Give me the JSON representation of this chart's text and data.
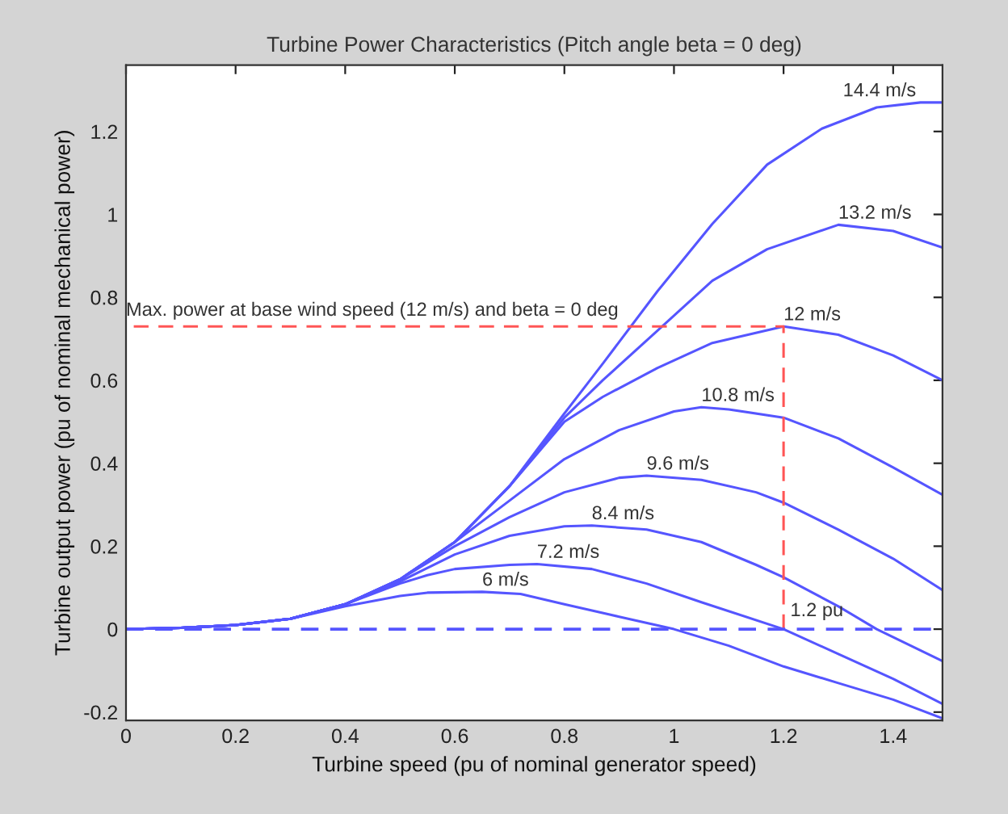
{
  "chart_data": {
    "type": "line",
    "title": "Turbine Power Characteristics (Pitch angle beta = 0 deg)",
    "xlabel": "Turbine speed (pu of nominal generator speed)",
    "ylabel": "Turbine output power (pu of nominal mechanical power)",
    "xlim": [
      0,
      1.49
    ],
    "ylim": [
      -0.22,
      1.36
    ],
    "xticks": [
      0,
      0.2,
      0.4,
      0.6,
      0.8,
      1,
      1.2,
      1.4
    ],
    "yticks": [
      -0.2,
      0,
      0.2,
      0.4,
      0.6,
      0.8,
      1,
      1.2
    ],
    "grid": false,
    "legend": false,
    "marker": "none",
    "line_style": "solid",
    "series": [
      {
        "name": "6 m/s",
        "color": "#5555ff",
        "x": [
          0,
          0.1,
          0.2,
          0.3,
          0.4,
          0.5,
          0.55,
          0.65,
          0.72,
          0.8,
          0.9,
          1.0,
          1.1,
          1.2,
          1.3,
          1.4,
          1.49
        ],
        "values": [
          0,
          0.003,
          0.01,
          0.025,
          0.055,
          0.08,
          0.088,
          0.09,
          0.085,
          0.06,
          0.03,
          0.0,
          -0.04,
          -0.09,
          -0.13,
          -0.17,
          -0.215
        ]
      },
      {
        "name": "7.2 m/s",
        "color": "#5555ff",
        "x": [
          0,
          0.1,
          0.2,
          0.3,
          0.4,
          0.5,
          0.55,
          0.6,
          0.7,
          0.75,
          0.85,
          0.95,
          1.05,
          1.2,
          1.3,
          1.4,
          1.49
        ],
        "values": [
          0,
          0.003,
          0.01,
          0.025,
          0.06,
          0.11,
          0.13,
          0.145,
          0.155,
          0.157,
          0.145,
          0.11,
          0.065,
          0.0,
          -0.06,
          -0.12,
          -0.18
        ]
      },
      {
        "name": "8.4 m/s",
        "color": "#5555ff",
        "x": [
          0,
          0.1,
          0.2,
          0.3,
          0.4,
          0.5,
          0.6,
          0.7,
          0.8,
          0.85,
          0.95,
          1.05,
          1.15,
          1.2,
          1.3,
          1.37,
          1.49
        ],
        "values": [
          0,
          0.003,
          0.01,
          0.025,
          0.06,
          0.115,
          0.18,
          0.225,
          0.248,
          0.25,
          0.24,
          0.21,
          0.155,
          0.125,
          0.055,
          0.0,
          -0.077
        ]
      },
      {
        "name": "9.6 m/s",
        "color": "#5555ff",
        "x": [
          0,
          0.1,
          0.2,
          0.3,
          0.4,
          0.5,
          0.6,
          0.7,
          0.8,
          0.9,
          0.95,
          1.05,
          1.15,
          1.2,
          1.3,
          1.4,
          1.49
        ],
        "values": [
          0,
          0.003,
          0.01,
          0.025,
          0.06,
          0.12,
          0.2,
          0.27,
          0.33,
          0.365,
          0.37,
          0.36,
          0.33,
          0.305,
          0.24,
          0.17,
          0.094
        ]
      },
      {
        "name": "10.8 m/s",
        "color": "#5555ff",
        "x": [
          0,
          0.1,
          0.2,
          0.3,
          0.4,
          0.5,
          0.6,
          0.7,
          0.8,
          0.9,
          1.0,
          1.05,
          1.1,
          1.2,
          1.3,
          1.4,
          1.49
        ],
        "values": [
          0,
          0.003,
          0.01,
          0.025,
          0.06,
          0.12,
          0.21,
          0.31,
          0.41,
          0.48,
          0.525,
          0.535,
          0.53,
          0.51,
          0.46,
          0.39,
          0.324
        ]
      },
      {
        "name": "12 m/s",
        "color": "#5555ff",
        "x": [
          0,
          0.1,
          0.2,
          0.3,
          0.4,
          0.5,
          0.6,
          0.7,
          0.8,
          0.87,
          0.97,
          1.07,
          1.2,
          1.3,
          1.4,
          1.49
        ],
        "values": [
          0,
          0.003,
          0.01,
          0.025,
          0.06,
          0.12,
          0.21,
          0.345,
          0.5,
          0.56,
          0.63,
          0.69,
          0.73,
          0.71,
          0.66,
          0.6
        ]
      },
      {
        "name": "13.2 m/s",
        "color": "#5555ff",
        "x": [
          0,
          0.1,
          0.2,
          0.3,
          0.4,
          0.5,
          0.6,
          0.7,
          0.8,
          0.87,
          0.97,
          1.07,
          1.17,
          1.3,
          1.4,
          1.49
        ],
        "values": [
          0,
          0.003,
          0.01,
          0.025,
          0.06,
          0.12,
          0.21,
          0.345,
          0.51,
          0.6,
          0.72,
          0.84,
          0.916,
          0.975,
          0.96,
          0.92
        ]
      },
      {
        "name": "14.4 m/s",
        "color": "#5555ff",
        "x": [
          0,
          0.1,
          0.2,
          0.3,
          0.4,
          0.5,
          0.6,
          0.7,
          0.8,
          0.87,
          0.97,
          1.07,
          1.17,
          1.27,
          1.37,
          1.45,
          1.49
        ],
        "values": [
          0,
          0.003,
          0.01,
          0.025,
          0.06,
          0.12,
          0.21,
          0.345,
          0.52,
          0.64,
          0.815,
          0.977,
          1.12,
          1.207,
          1.258,
          1.27,
          1.27
        ]
      },
      {
        "color": "#ff5555",
        "line_style": "dashed",
        "x": [
          1.2,
          1.2,
          0
        ],
        "values": [
          0,
          0.73,
          0.73
        ]
      }
    ],
    "ref_lines": [
      {
        "axis": "y",
        "value": 0,
        "color": "#5555ff",
        "line_style": "dashed"
      }
    ],
    "annotations": [
      {
        "text": "Max. power at base wind speed (12 m/s) and beta = 0 deg",
        "x": 0,
        "y": 0.73
      },
      {
        "text": "1.2 pu",
        "x": 1.2,
        "y": 0
      }
    ]
  }
}
